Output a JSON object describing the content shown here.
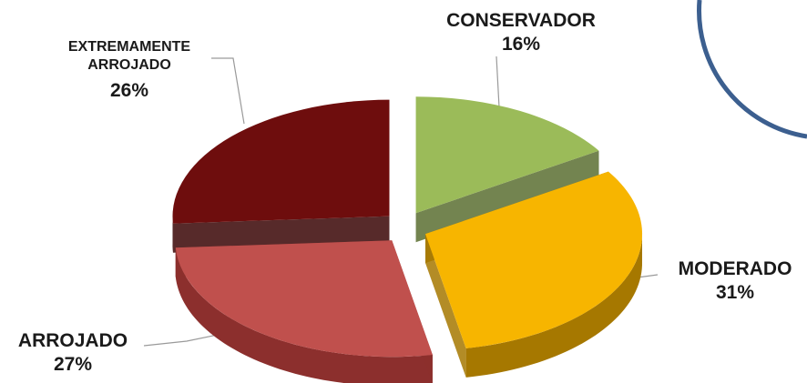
{
  "chart_data": {
    "type": "pie",
    "style": "3d-exploded",
    "slices": [
      {
        "label": "CONSERVADOR",
        "value": 16,
        "value_label": "16%",
        "color": "#9bbb59",
        "dark": "#5a6f31"
      },
      {
        "label": "MODERADO",
        "value": 31,
        "value_label": "31%",
        "color": "#f7b500",
        "dark": "#a67800"
      },
      {
        "label": "ARROJADO",
        "value": 27,
        "value_label": "27%",
        "color": "#c0504d",
        "dark": "#8c2f2d"
      },
      {
        "label_lines": [
          "EXTREMAMENTE",
          "ARROJADO"
        ],
        "value": 26,
        "value_label": "26%",
        "color": "#6e0d0d",
        "dark": "#3a0505"
      }
    ]
  },
  "decoration": {
    "ring_color": "#3c5f8f"
  }
}
